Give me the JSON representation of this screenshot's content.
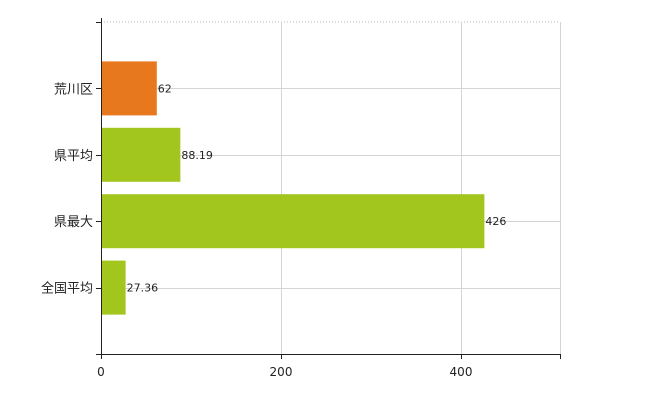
{
  "chart_data": {
    "type": "bar",
    "orientation": "horizontal",
    "title": "",
    "xlabel": "",
    "ylabel": "",
    "categories": [
      "荒川区",
      "県平均",
      "県最大",
      "全国平均"
    ],
    "values": [
      62,
      88.19,
      426,
      27.36
    ],
    "value_labels": [
      "62",
      "88.19",
      "426",
      "27.36"
    ],
    "bar_colors": [
      "#e8781e",
      "#a3c61f",
      "#a3c61f",
      "#a3c61f"
    ],
    "xlim": [
      0,
      510
    ],
    "x_ticks": [
      0,
      200,
      400
    ],
    "grid": true,
    "legend": "none"
  }
}
